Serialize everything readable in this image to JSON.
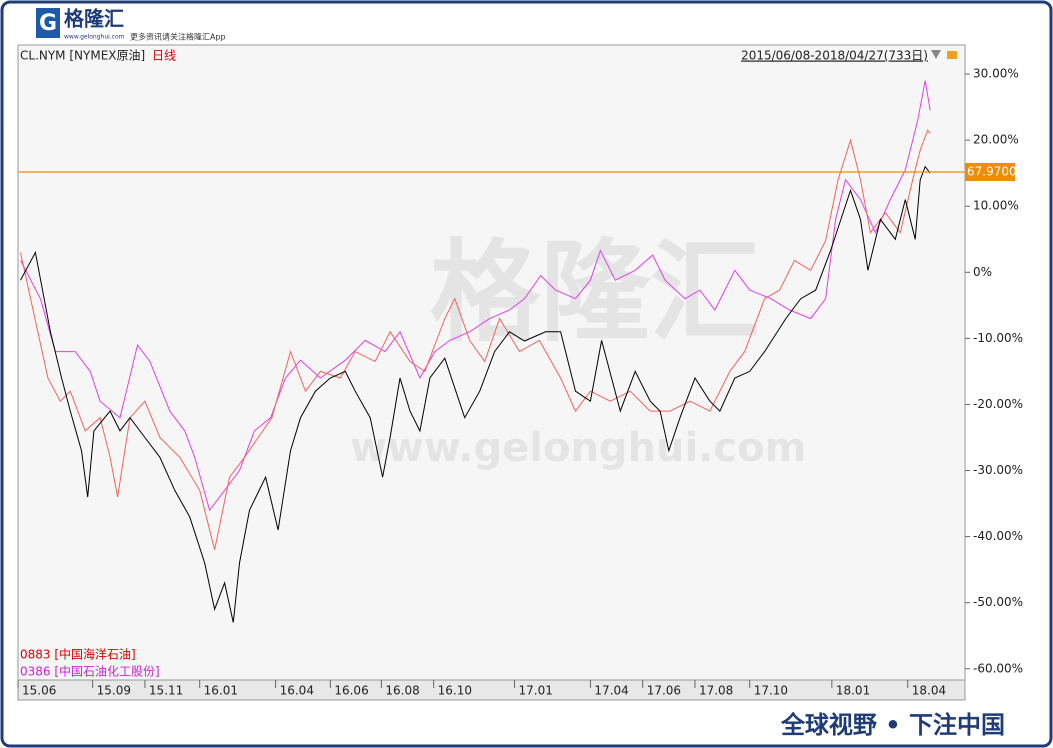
{
  "logo": {
    "name": "格隆汇",
    "url": "www.gelonghui.com",
    "slogan": "更多资讯请关注格隆汇App"
  },
  "watermark": {
    "name": "格隆汇",
    "url": "www.gelonghui.com"
  },
  "footer": "全球视野 • 下注中国",
  "price_label": "67.9700",
  "chart_data": {
    "type": "line",
    "period": "日线",
    "range": "2015/06/08-2018/04/27(733日)",
    "xlim": [
      0,
      761
    ],
    "ylim": [
      -61.7,
      34.4
    ],
    "xticks": [
      {
        "value": 0,
        "label": "15.06"
      },
      {
        "value": 60,
        "label": "15.09"
      },
      {
        "value": 102,
        "label": "15.11"
      },
      {
        "value": 146,
        "label": "16.01"
      },
      {
        "value": 207,
        "label": "16.04"
      },
      {
        "value": 251,
        "label": "16.06"
      },
      {
        "value": 292,
        "label": "16.08"
      },
      {
        "value": 334,
        "label": "16.10"
      },
      {
        "value": 399,
        "label": "17.01"
      },
      {
        "value": 460,
        "label": "17.04"
      },
      {
        "value": 502,
        "label": "17.06"
      },
      {
        "value": 544,
        "label": "17.08"
      },
      {
        "value": 588,
        "label": "17.10"
      },
      {
        "value": 654,
        "label": "18.01"
      },
      {
        "value": 715,
        "label": "18.04"
      }
    ],
    "yticks": [
      {
        "value": 30,
        "label": "30.00%"
      },
      {
        "value": 20,
        "label": "20.00%"
      },
      {
        "value": 10,
        "label": "10.00%"
      },
      {
        "value": 0,
        "label": "0%"
      },
      {
        "value": -10,
        "label": "-10.00%"
      },
      {
        "value": -20,
        "label": "-20.00%"
      },
      {
        "value": -30,
        "label": "-30.00%"
      },
      {
        "value": -40,
        "label": "-40.00%"
      },
      {
        "value": -50,
        "label": "-50.00%"
      },
      {
        "value": -60,
        "label": "-60.00%"
      }
    ],
    "grid": false,
    "series": [
      {
        "name": "CL.NYM [NYMEX原油]",
        "color": "#000000",
        "x": [
          2,
          14,
          26,
          35,
          42,
          51,
          56,
          61,
          74,
          82,
          90,
          102,
          114,
          126,
          138,
          150,
          158,
          166,
          173,
          178,
          186,
          199,
          209,
          219,
          227,
          239,
          251,
          263,
          271,
          283,
          293,
          299,
          307,
          315,
          323,
          331,
          343,
          359,
          371,
          383,
          395,
          407,
          424,
          436,
          448,
          460,
          469,
          484,
          496,
          508,
          516,
          523,
          532,
          544,
          556,
          564,
          576,
          588,
          600,
          617,
          629,
          641,
          653,
          669,
          677,
          683,
          693,
          705,
          713,
          721,
          725,
          729,
          733
        ],
        "values": [
          -1.2,
          3,
          -9,
          -16,
          -21,
          -27,
          -34,
          -24,
          -21,
          -24,
          -22,
          -25,
          -28,
          -33,
          -37,
          -44,
          -51,
          -47,
          -53,
          -44,
          -36,
          -31,
          -39,
          -27,
          -22,
          -18,
          -16,
          -15,
          -18,
          -22,
          -31,
          -25,
          -16,
          -21,
          -24,
          -16,
          -13,
          -22,
          -18,
          -12,
          -9,
          -10.4,
          -9,
          -9,
          -18,
          -19.5,
          -10.3,
          -21,
          -15,
          -19.5,
          -21,
          -27,
          -22,
          -16,
          -19.5,
          -21,
          -16,
          -15,
          -12,
          -7,
          -4,
          -2.7,
          3.3,
          12.4,
          8,
          0.3,
          8,
          5,
          11,
          5,
          14,
          16,
          15
        ]
      },
      {
        "name": "0883 [中国海洋石油]",
        "color": "#f0645a",
        "x": [
          2,
          24,
          34,
          42,
          54,
          66,
          74,
          80,
          90,
          102,
          114,
          130,
          146,
          158,
          170,
          182,
          193,
          204,
          219,
          231,
          243,
          259,
          271,
          287,
          299,
          315,
          327,
          343,
          351,
          363,
          375,
          387,
          403,
          419,
          436,
          448,
          460,
          476,
          492,
          508,
          524,
          540,
          556,
          572,
          584,
          600,
          612,
          624,
          637,
          649,
          659,
          669,
          677,
          685,
          697,
          709,
          719,
          725,
          731,
          733
        ],
        "values": [
          3,
          -16,
          -19.5,
          -18,
          -24,
          -22,
          -28,
          -34,
          -22,
          -19.5,
          -25,
          -28,
          -33,
          -42,
          -31,
          -28,
          -25,
          -22,
          -12,
          -18,
          -15,
          -16,
          -12,
          -13.5,
          -9,
          -13.5,
          -15,
          -7,
          -4,
          -10.3,
          -13.5,
          -7,
          -12,
          -10.3,
          -16,
          -21,
          -18,
          -19.5,
          -18,
          -21,
          -21,
          -19.5,
          -21,
          -15,
          -12,
          -4,
          -2.7,
          1.8,
          0.3,
          4.8,
          14,
          20,
          14,
          6,
          9,
          6,
          14,
          18.5,
          21.5,
          21
        ]
      },
      {
        "name": "0386 [中国石油化工股份]",
        "color": "#e040e8",
        "x": [
          2,
          18,
          30,
          46,
          58,
          66,
          82,
          96,
          106,
          122,
          134,
          142,
          154,
          166,
          178,
          190,
          203,
          215,
          227,
          243,
          263,
          279,
          295,
          307,
          323,
          335,
          347,
          363,
          379,
          395,
          407,
          420,
          432,
          448,
          460,
          468,
          480,
          496,
          510,
          520,
          536,
          548,
          560,
          576,
          588,
          605,
          620,
          637,
          649,
          657,
          665,
          677,
          689,
          701,
          713,
          723,
          729,
          733
        ],
        "values": [
          1.8,
          -4,
          -12,
          -12,
          -15,
          -19.5,
          -22,
          -11,
          -13.5,
          -21,
          -24,
          -28,
          -36,
          -33,
          -30,
          -24,
          -22,
          -16,
          -13.3,
          -16,
          -13.3,
          -10.3,
          -12,
          -9,
          -16,
          -12,
          -10.3,
          -9,
          -7,
          -5.7,
          -4,
          -0.5,
          -2.7,
          -4,
          -1.2,
          3.3,
          -1.2,
          0.3,
          2.6,
          -1.2,
          -4,
          -2.7,
          -5.7,
          0.3,
          -2.7,
          -4,
          -5.7,
          -7,
          -4,
          8,
          14,
          11,
          6,
          11,
          15.5,
          23,
          29,
          24.5
        ]
      }
    ]
  }
}
